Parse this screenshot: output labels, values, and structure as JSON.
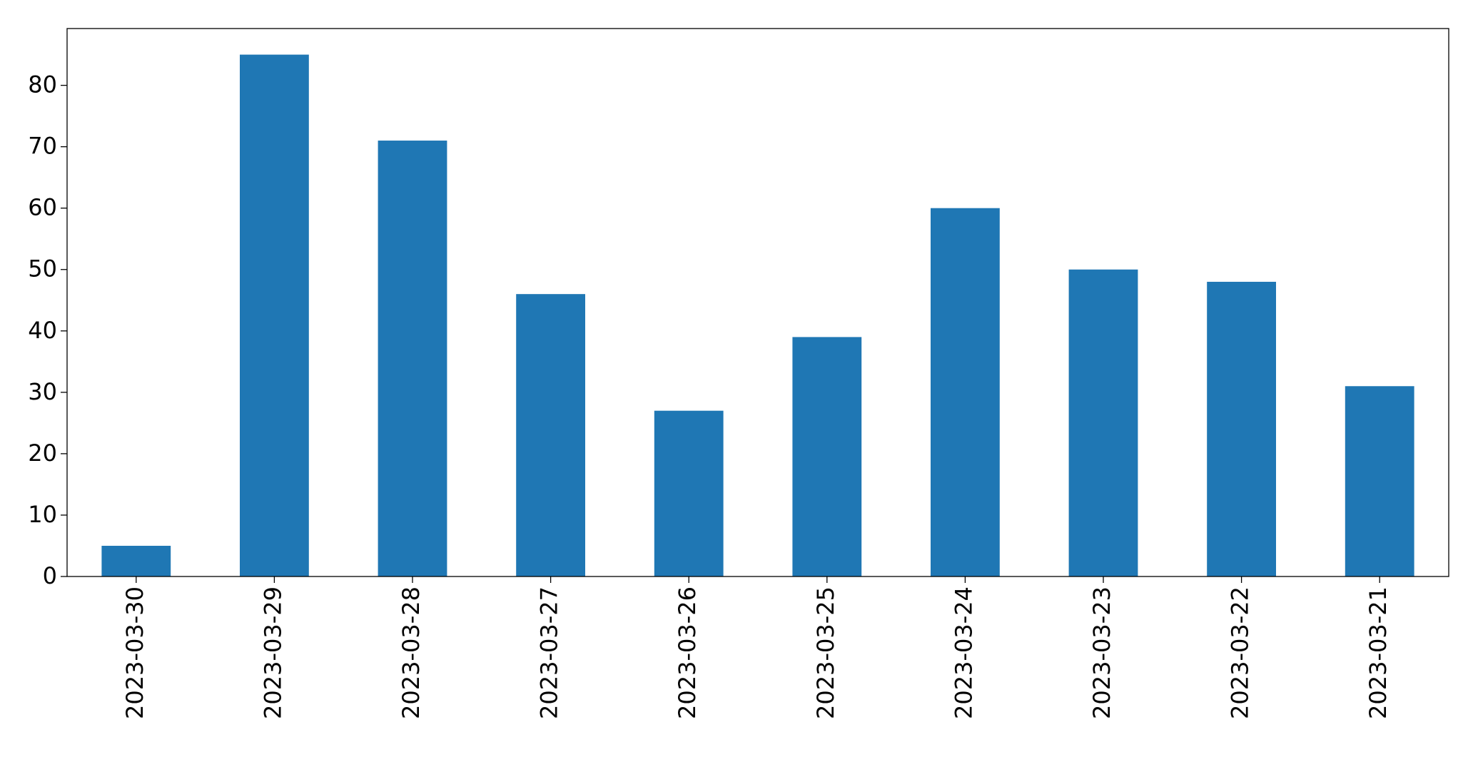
{
  "chart_data": {
    "type": "bar",
    "categories": [
      "2023-03-30",
      "2023-03-29",
      "2023-03-28",
      "2023-03-27",
      "2023-03-26",
      "2023-03-25",
      "2023-03-24",
      "2023-03-23",
      "2023-03-22",
      "2023-03-21"
    ],
    "values": [
      5,
      85,
      71,
      46,
      27,
      39,
      60,
      50,
      48,
      31
    ],
    "color": "#1f77b4",
    "ylim": [
      0,
      89.25
    ],
    "yticks": [
      0,
      10,
      20,
      30,
      40,
      50,
      60,
      70,
      80
    ],
    "grid": false
  }
}
